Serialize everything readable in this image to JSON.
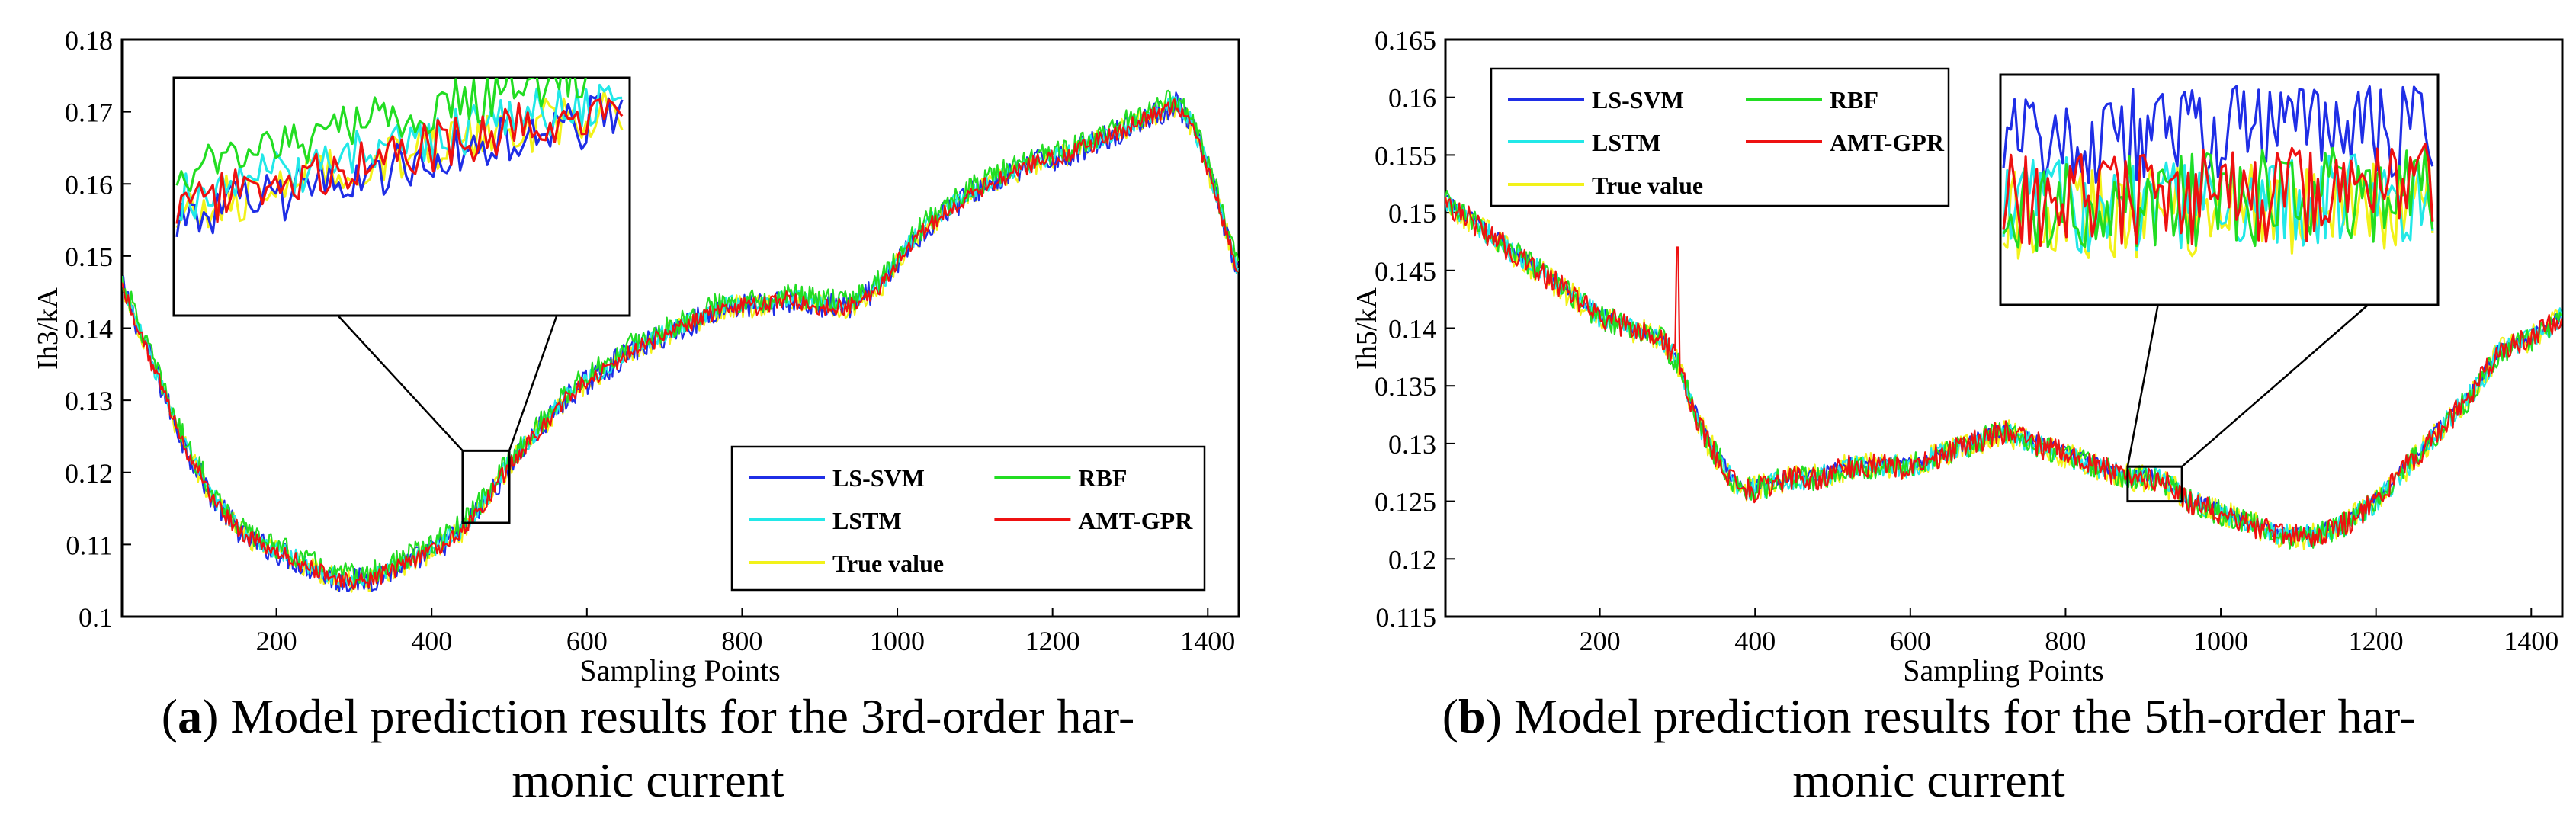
{
  "chart_data": [
    {
      "type": "line",
      "panel_label": "a",
      "caption": ") Model prediction results for the 3rd-order harmonic current",
      "caption_line1": ") Model prediction results for the 3rd-order har-",
      "caption_line2": "monic current",
      "xlabel": "Sampling Points",
      "ylabel": "Ih3/kA",
      "xlim": [
        1,
        1440
      ],
      "ylim": [
        0.1,
        0.18
      ],
      "x_ticks": [
        200,
        400,
        600,
        800,
        1000,
        1200,
        1400
      ],
      "y_ticks": [
        "0.1",
        "0.11",
        "0.12",
        "0.13",
        "0.14",
        "0.15",
        "0.16",
        "0.17",
        "0.18"
      ],
      "legend_position": "lower-right",
      "zoom_window": {
        "x_range": [
          440,
          500
        ],
        "y_range": [
          0.113,
          0.123
        ]
      },
      "profile": {
        "x": [
          1,
          40,
          80,
          120,
          160,
          200,
          240,
          280,
          320,
          360,
          400,
          440,
          470,
          500,
          540,
          580,
          620,
          660,
          700,
          740,
          780,
          820,
          860,
          900,
          940,
          980,
          1020,
          1060,
          1100,
          1140,
          1180,
          1220,
          1260,
          1300,
          1340,
          1360,
          1380,
          1400,
          1420,
          1440
        ],
        "y": [
          0.146,
          0.135,
          0.124,
          0.116,
          0.111,
          0.109,
          0.107,
          0.105,
          0.105,
          0.107,
          0.109,
          0.112,
          0.116,
          0.121,
          0.126,
          0.131,
          0.134,
          0.137,
          0.139,
          0.141,
          0.143,
          0.143,
          0.144,
          0.143,
          0.143,
          0.146,
          0.152,
          0.156,
          0.159,
          0.161,
          0.163,
          0.164,
          0.166,
          0.168,
          0.17,
          0.171,
          0.168,
          0.162,
          0.155,
          0.147
        ]
      },
      "series": [
        {
          "name": "LS-SVM",
          "color": "#1f2ee6",
          "noise": 0.0018,
          "bias": 0.0
        },
        {
          "name": "RBF",
          "color": "#22dd22",
          "noise": 0.0017,
          "bias": 0.0008
        },
        {
          "name": "LSTM",
          "color": "#22e8e8",
          "noise": 0.0013,
          "bias": 0.0003
        },
        {
          "name": "AMT-GPR",
          "color": "#ee1111",
          "noise": 0.0012,
          "bias": 0.0
        },
        {
          "name": "True value",
          "color": "#f2f21a",
          "noise": 0.0016,
          "bias": 0.0
        }
      ]
    },
    {
      "type": "line",
      "panel_label": "b",
      "caption": ") Model prediction results for the 5th-order harmonic current",
      "caption_line1": ") Model prediction results for the 5th-order har-",
      "caption_line2": "monic current",
      "xlabel": "Sampling Points",
      "ylabel": "Ih5/kA",
      "xlim": [
        1,
        1440
      ],
      "ylim": [
        0.115,
        0.165
      ],
      "x_ticks": [
        200,
        400,
        600,
        800,
        1000,
        1200,
        1400
      ],
      "y_ticks": [
        "0.115",
        "0.12",
        "0.125",
        "0.13",
        "0.135",
        "0.14",
        "0.145",
        "0.15",
        "0.155",
        "0.16",
        "0.165"
      ],
      "legend_position": "top-left",
      "zoom_window": {
        "x_range": [
          880,
          950
        ],
        "y_range": [
          0.125,
          0.128
        ]
      },
      "profile": {
        "x": [
          1,
          40,
          80,
          120,
          160,
          200,
          240,
          280,
          300,
          320,
          340,
          360,
          380,
          400,
          440,
          480,
          520,
          560,
          600,
          640,
          680,
          720,
          760,
          800,
          840,
          880,
          920,
          960,
          1000,
          1040,
          1080,
          1120,
          1160,
          1200,
          1240,
          1280,
          1320,
          1360,
          1400,
          1440
        ],
        "y": [
          0.151,
          0.149,
          0.147,
          0.145,
          0.143,
          0.141,
          0.14,
          0.139,
          0.137,
          0.133,
          0.13,
          0.128,
          0.126,
          0.126,
          0.127,
          0.127,
          0.128,
          0.128,
          0.128,
          0.129,
          0.13,
          0.131,
          0.13,
          0.129,
          0.128,
          0.127,
          0.127,
          0.125,
          0.124,
          0.123,
          0.122,
          0.122,
          0.123,
          0.125,
          0.128,
          0.131,
          0.134,
          0.138,
          0.139,
          0.141
        ]
      },
      "spike": {
        "x": 300,
        "top": 0.147,
        "color": "#ee1111"
      },
      "series": [
        {
          "name": "LS-SVM",
          "color": "#1f2ee6",
          "noise": 0.0006,
          "bias": 0.0002
        },
        {
          "name": "RBF",
          "color": "#22dd22",
          "noise": 0.0011,
          "bias": 0.0
        },
        {
          "name": "LSTM",
          "color": "#22e8e8",
          "noise": 0.001,
          "bias": 0.0
        },
        {
          "name": "AMT-GPR",
          "color": "#ee1111",
          "noise": 0.0011,
          "bias": 0.0
        },
        {
          "name": "True value",
          "color": "#f2f21a",
          "noise": 0.0012,
          "bias": 0.0
        }
      ]
    }
  ]
}
